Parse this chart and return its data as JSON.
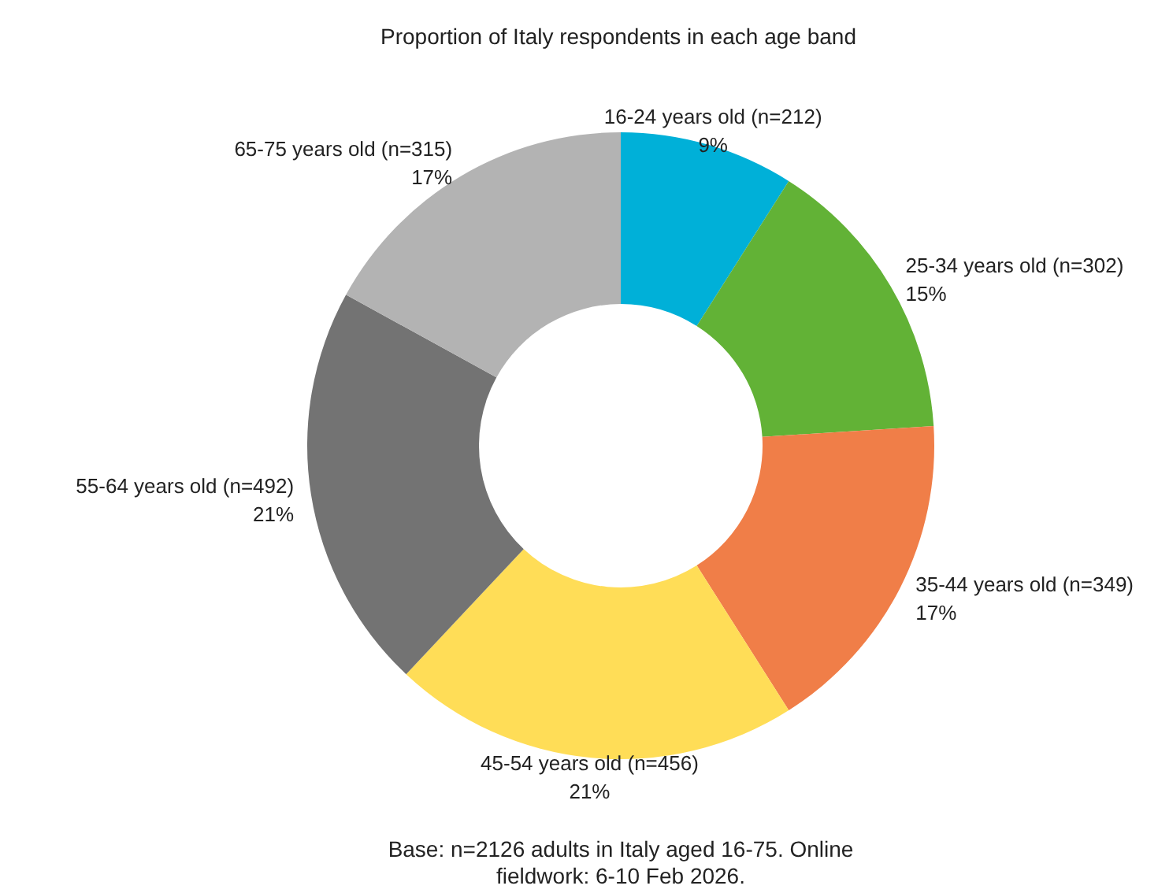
{
  "chart_data": {
    "type": "donut",
    "title": "Proportion of Italy respondents in each age band",
    "categories": [
      "16-24 years old (n=212)",
      "25-34 years old (n=302)",
      "35-44 years old (n=349)",
      "45-54 years old (n=456)",
      "55-64 years old (n=492)",
      "65-75 years old (n=315)"
    ],
    "values": [
      9,
      15,
      17,
      21,
      21,
      17
    ],
    "colors": [
      "#00b0d8",
      "#62b236",
      "#f07e48",
      "#ffdd57",
      "#737373",
      "#b3b3b3"
    ],
    "value_labels": [
      "9%",
      "15%",
      "17%",
      "21%",
      "21%",
      "17%"
    ],
    "annotations": [
      "Base: n=2126 adults in Italy aged 16-75. Online fieldwork: 6-10 Feb 2026."
    ]
  }
}
